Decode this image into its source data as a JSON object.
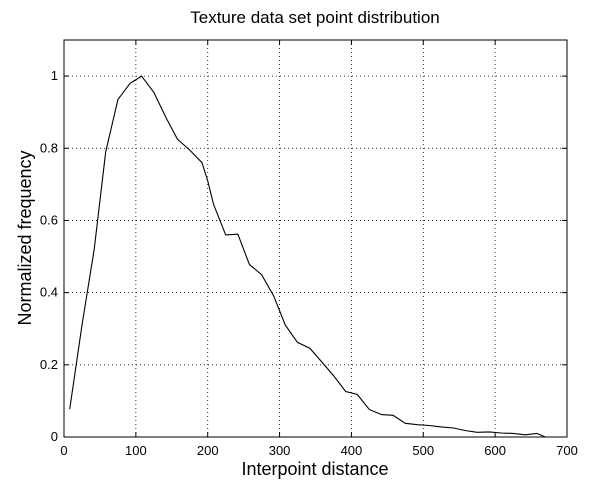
{
  "chart_data": {
    "type": "line",
    "title": "Texture data set point distribution",
    "xlabel": "Interpoint distance",
    "ylabel": "Normalized frequency",
    "xlim": [
      0,
      700
    ],
    "ylim": [
      0,
      1.1
    ],
    "xticks": [
      0,
      100,
      200,
      300,
      400,
      500,
      600,
      700
    ],
    "yticks": [
      0,
      0.2,
      0.4,
      0.6,
      0.8,
      1
    ],
    "xtick_labels": [
      "0",
      "100",
      "200",
      "300",
      "400",
      "500",
      "600",
      "700"
    ],
    "ytick_labels": [
      "0",
      "0.2",
      "0.4",
      "0.6",
      "0.8",
      "1"
    ],
    "grid": true,
    "series": [
      {
        "x": [
          8,
          25,
          42,
          58,
          75,
          92,
          108,
          125,
          142,
          158,
          175,
          192,
          200,
          208,
          225,
          242,
          258,
          275,
          292,
          308,
          325,
          342,
          358,
          375,
          392,
          408,
          425,
          442,
          458,
          475,
          492,
          508,
          525,
          542,
          558,
          575,
          592,
          608,
          625,
          642,
          658,
          670
        ],
        "y": [
          0.077,
          0.31,
          0.52,
          0.79,
          0.935,
          0.98,
          1.0,
          0.955,
          0.885,
          0.825,
          0.795,
          0.76,
          0.71,
          0.645,
          0.56,
          0.562,
          0.478,
          0.45,
          0.39,
          0.31,
          0.262,
          0.246,
          0.21,
          0.17,
          0.126,
          0.118,
          0.076,
          0.062,
          0.06,
          0.038,
          0.034,
          0.032,
          0.028,
          0.025,
          0.018,
          0.013,
          0.014,
          0.011,
          0.01,
          0.006,
          0.01,
          0.0
        ]
      }
    ]
  }
}
